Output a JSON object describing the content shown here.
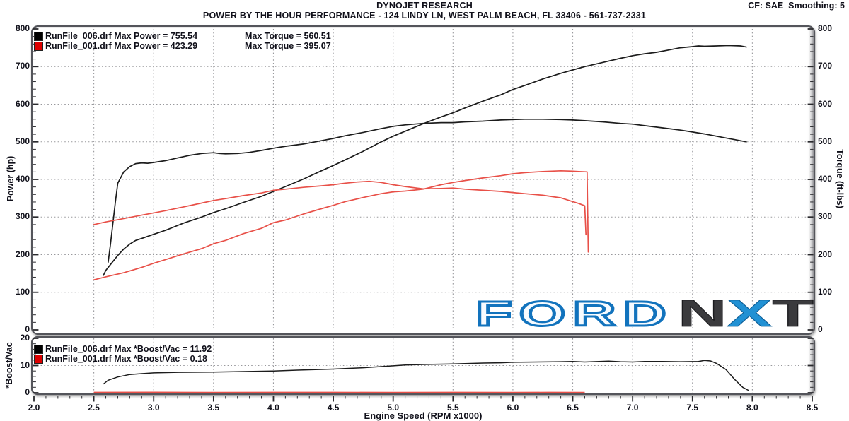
{
  "header": {
    "title": "DYNOJET RESEARCH",
    "subtitle": "POWER BY THE HOUR PERFORMANCE - 124 LINDY LN, WEST PALM BEACH, FL 33406 - 561-737-2331",
    "cf": "CF: SAE",
    "smoothing": "Smoothing: 5"
  },
  "x_axis": {
    "label": "Engine Speed (RPM x1000)",
    "range": [
      2.0,
      8.5
    ],
    "tick_labels": [
      "2.0",
      "2.5",
      "3.0",
      "3.5",
      "4.0",
      "4.5",
      "5.0",
      "5.5",
      "6.0",
      "6.5",
      "7.0",
      "7.5",
      "8.0",
      "8.5"
    ]
  },
  "watermark": {
    "ford": "FORD",
    "nxt": "NXT",
    "ford_fill": "#f7fbff",
    "ford_outline": "#1273bd",
    "nxt_dark": "#3a3a3d",
    "nxt_blue": "#2191d4"
  },
  "chart_data": [
    {
      "type": "line",
      "name": "power-torque-vs-rpm",
      "ylabel_left": "Power (hp)",
      "ylabel_right": "Torque (ft-lbs)",
      "ylim": [
        0,
        800
      ],
      "ytick_labels": [
        "0",
        "100",
        "200",
        "300",
        "400",
        "500",
        "600",
        "700",
        "800"
      ],
      "grid": "dotted, vertical every 0.5 RPM, horizontal every 100",
      "legend_position": "top-left",
      "legend": [
        {
          "id": "run006",
          "color": "#000000",
          "left": "RunFile_006.drf Max Power = 755.54",
          "right": "Max Torque = 560.51"
        },
        {
          "id": "run001",
          "color": "#dd0000",
          "left": "RunFile_001.drf Max Power = 423.29",
          "right": "Max Torque = 395.07"
        }
      ],
      "series": [
        {
          "id": "run006-power",
          "name": "RunFile_006 Power (hp)",
          "color": "#1c1c1c",
          "axis": "left",
          "x": [
            2.58,
            2.6,
            2.65,
            2.7,
            2.75,
            2.8,
            2.85,
            2.9,
            3.0,
            3.1,
            3.25,
            3.4,
            3.5,
            3.6,
            3.75,
            3.9,
            4.0,
            4.1,
            4.25,
            4.4,
            4.5,
            4.6,
            4.75,
            4.9,
            5.0,
            5.1,
            5.25,
            5.4,
            5.5,
            5.6,
            5.75,
            5.9,
            6.0,
            6.1,
            6.25,
            6.4,
            6.5,
            6.6,
            6.75,
            6.9,
            7.0,
            7.1,
            7.2,
            7.3,
            7.4,
            7.5,
            7.55,
            7.6,
            7.7,
            7.8,
            7.9,
            7.95
          ],
          "y": [
            145,
            158,
            178,
            198,
            215,
            228,
            238,
            243,
            254,
            265,
            284,
            300,
            312,
            322,
            339,
            355,
            368,
            381,
            401,
            423,
            437,
            452,
            475,
            500,
            515,
            528,
            548,
            566,
            577,
            590,
            608,
            625,
            639,
            650,
            667,
            682,
            691,
            700,
            711,
            722,
            729,
            734,
            738,
            744,
            750,
            753,
            755,
            754,
            755,
            756,
            755,
            752
          ]
        },
        {
          "id": "run006-torque",
          "name": "RunFile_006 Torque (ft-lbs)",
          "color": "#1c1c1c",
          "axis": "right",
          "x": [
            2.62,
            2.64,
            2.66,
            2.68,
            2.7,
            2.75,
            2.8,
            2.85,
            2.9,
            2.95,
            3.0,
            3.1,
            3.2,
            3.3,
            3.4,
            3.5,
            3.55,
            3.6,
            3.7,
            3.8,
            3.9,
            4.0,
            4.1,
            4.25,
            4.4,
            4.5,
            4.6,
            4.75,
            4.9,
            5.0,
            5.1,
            5.25,
            5.4,
            5.5,
            5.6,
            5.75,
            5.9,
            6.0,
            6.1,
            6.25,
            6.4,
            6.5,
            6.6,
            6.75,
            6.9,
            7.0,
            7.1,
            7.25,
            7.4,
            7.5,
            7.6,
            7.75,
            7.85,
            7.95
          ],
          "y": [
            180,
            230,
            285,
            340,
            390,
            420,
            434,
            442,
            444,
            443,
            445,
            450,
            457,
            464,
            469,
            471,
            469,
            468,
            469,
            472,
            477,
            483,
            488,
            494,
            503,
            509,
            516,
            525,
            535,
            541,
            545,
            549,
            551,
            551,
            553,
            555,
            558,
            559,
            560,
            560,
            559,
            558,
            556,
            553,
            549,
            547,
            543,
            537,
            531,
            526,
            521,
            512,
            506,
            500
          ]
        },
        {
          "id": "run001-power",
          "name": "RunFile_001 Power (hp)",
          "color": "#e85048",
          "axis": "left",
          "x": [
            2.5,
            2.6,
            2.75,
            2.9,
            3.0,
            3.1,
            3.25,
            3.4,
            3.5,
            3.6,
            3.75,
            3.9,
            4.0,
            4.1,
            4.25,
            4.4,
            4.5,
            4.6,
            4.75,
            4.9,
            5.0,
            5.1,
            5.25,
            5.4,
            5.5,
            5.6,
            5.75,
            5.9,
            6.0,
            6.1,
            6.25,
            6.4,
            6.5,
            6.55,
            6.62,
            6.63
          ],
          "y": [
            133,
            141,
            152,
            166,
            177,
            187,
            202,
            216,
            229,
            238,
            256,
            270,
            285,
            292,
            308,
            322,
            331,
            341,
            352,
            362,
            367,
            369,
            374,
            386,
            392,
            397,
            404,
            410,
            415,
            418,
            421,
            423,
            422,
            421,
            420,
            207
          ]
        },
        {
          "id": "run001-torque",
          "name": "RunFile_001 Torque (ft-lbs)",
          "color": "#e85048",
          "axis": "right",
          "x": [
            2.5,
            2.6,
            2.75,
            2.9,
            3.0,
            3.1,
            3.25,
            3.4,
            3.5,
            3.6,
            3.75,
            3.9,
            4.0,
            4.1,
            4.25,
            4.4,
            4.5,
            4.6,
            4.7,
            4.8,
            4.9,
            5.0,
            5.1,
            5.25,
            5.4,
            5.5,
            5.6,
            5.75,
            5.9,
            6.0,
            6.1,
            6.25,
            6.4,
            6.5,
            6.55,
            6.6,
            6.61
          ],
          "y": [
            280,
            287,
            296,
            305,
            311,
            317,
            327,
            337,
            344,
            349,
            357,
            364,
            371,
            374,
            379,
            383,
            386,
            390,
            393,
            395,
            392,
            386,
            381,
            375,
            376,
            377,
            374,
            371,
            368,
            365,
            362,
            358,
            351,
            341,
            336,
            330,
            253
          ]
        }
      ]
    },
    {
      "type": "line",
      "name": "boost-vac-vs-rpm",
      "ylabel_left": "*Boost/Vac",
      "ylim": [
        0,
        20
      ],
      "ytick_labels": [
        "0",
        "10",
        "20"
      ],
      "grid": "dotted, vertical every 0.5 RPM, horizontal at 10",
      "legend_position": "top-left",
      "legend": [
        {
          "id": "run006",
          "color": "#000000",
          "left": "RunFile_006.drf Max *Boost/Vac = 11.92"
        },
        {
          "id": "run001",
          "color": "#dd0000",
          "left": "RunFile_001.drf Max *Boost/Vac = 0.18"
        }
      ],
      "series": [
        {
          "id": "run006-boost",
          "name": "RunFile_006 *Boost/Vac",
          "color": "#1c1c1c",
          "axis": "left",
          "x": [
            2.58,
            2.62,
            2.7,
            2.8,
            2.9,
            3.0,
            3.2,
            3.5,
            3.75,
            4.0,
            4.2,
            4.5,
            4.75,
            5.0,
            5.1,
            5.25,
            5.5,
            5.75,
            5.9,
            6.0,
            6.2,
            6.4,
            6.5,
            6.6,
            6.8,
            6.9,
            7.0,
            7.1,
            7.25,
            7.4,
            7.55,
            7.6,
            7.65,
            7.7,
            7.78,
            7.85,
            7.92,
            7.97
          ],
          "y": [
            3.2,
            4.6,
            5.8,
            6.7,
            7.0,
            7.3,
            7.5,
            7.6,
            7.8,
            8.0,
            8.3,
            8.7,
            9.2,
            9.9,
            10.2,
            10.4,
            10.6,
            10.9,
            11.0,
            11.2,
            11.3,
            11.4,
            11.5,
            11.3,
            11.6,
            11.4,
            11.3,
            11.5,
            11.5,
            11.4,
            11.5,
            11.9,
            11.7,
            10.8,
            8.5,
            5.0,
            2.0,
            0.8
          ]
        },
        {
          "id": "run001-boost",
          "name": "RunFile_001 *Boost/Vac",
          "color": "#e85048",
          "axis": "left",
          "x": [
            2.5,
            3.0,
            3.5,
            4.0,
            4.5,
            5.0,
            5.5,
            6.0,
            6.3,
            6.6
          ],
          "y": [
            0.15,
            0.18,
            0.12,
            0.15,
            0.15,
            0.12,
            0.15,
            0.12,
            0.15,
            0.12
          ]
        }
      ]
    }
  ]
}
